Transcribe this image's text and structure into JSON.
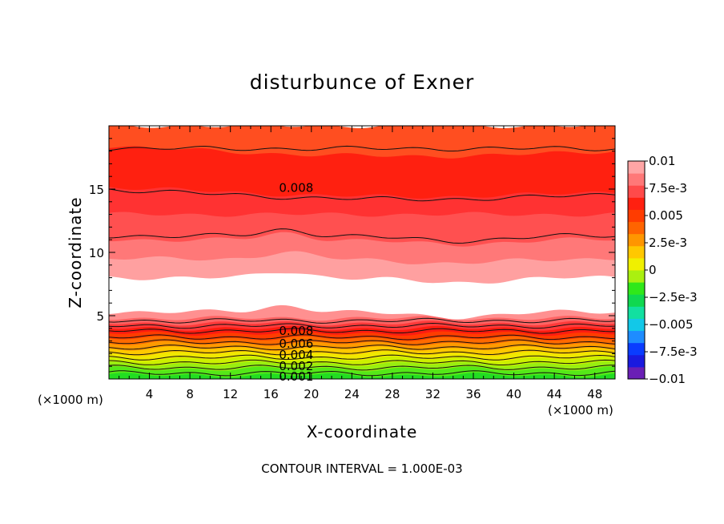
{
  "chart_data": {
    "type": "heatmap",
    "title": "disturbunce of Exner",
    "xlabel": "X-coordinate",
    "ylabel": "Z-coordinate",
    "x_unit_left": "(×1000 m)",
    "x_unit_right": "(×1000 m)",
    "footer": "CONTOUR INTERVAL = 1.000E-03",
    "xlim": [
      0,
      50
    ],
    "ylim": [
      0,
      20
    ],
    "x_ticks": [
      4,
      8,
      12,
      16,
      20,
      24,
      28,
      32,
      36,
      40,
      44,
      48
    ],
    "y_ticks": [
      5,
      10,
      15
    ],
    "colorbar": {
      "range": [
        -0.01,
        0.01
      ],
      "tick_labels": [
        "0.01",
        "7.5e-3",
        "0.005",
        "2.5e-3",
        "0",
        "−2.5e-3",
        "−0.005",
        "−7.5e-3",
        "−0.01"
      ],
      "tick_values": [
        0.01,
        0.0075,
        0.005,
        0.0025,
        0,
        -0.0025,
        -0.005,
        -0.0075,
        -0.01
      ],
      "colors_low_to_high": [
        "#6a1fb5",
        "#1a1adf",
        "#0a3cff",
        "#1e8cff",
        "#12c8e8",
        "#12e0a0",
        "#10d850",
        "#30e81a",
        "#aaf010",
        "#f0f000",
        "#ffc800",
        "#ff9600",
        "#ff6400",
        "#ff3c00",
        "#ff2010",
        "#ff4a4a",
        "#ff7878",
        "#ffa5a5"
      ]
    },
    "bands": [
      {
        "z": 0.3,
        "color": "#22dd22"
      },
      {
        "z": 0.8,
        "color": "#55e818"
      },
      {
        "z": 1.2,
        "color": "#99ee10"
      },
      {
        "z": 1.6,
        "color": "#ccf000"
      },
      {
        "z": 2.0,
        "color": "#f0e800"
      },
      {
        "z": 2.4,
        "color": "#ffc800"
      },
      {
        "z": 2.8,
        "color": "#ff9a00"
      },
      {
        "z": 3.2,
        "color": "#ff6a00"
      },
      {
        "z": 3.6,
        "color": "#ff3c00"
      },
      {
        "z": 4.0,
        "color": "#ff1c10"
      },
      {
        "z": 4.4,
        "color": "#ff3a3a"
      },
      {
        "z": 4.8,
        "color": "#ff6464"
      },
      {
        "z": 5.3,
        "color": "#ff9090"
      },
      {
        "z": 8.0,
        "color": "#ffffff"
      },
      {
        "z": 9.5,
        "color": "#ffa0a0"
      },
      {
        "z": 11.0,
        "color": "#ff7878"
      },
      {
        "z": 13.0,
        "color": "#ff5050"
      },
      {
        "z": 15.0,
        "color": "#ff3232"
      },
      {
        "z": 18.2,
        "color": "#ff2010"
      },
      {
        "z": 20.0,
        "color": "#ff4e20"
      }
    ],
    "contour_lines": [
      {
        "z": 0.45
      },
      {
        "z": 0.9
      },
      {
        "z": 1.3
      },
      {
        "z": 1.7
      },
      {
        "z": 2.1
      },
      {
        "z": 2.5
      },
      {
        "z": 2.9
      },
      {
        "z": 3.3
      },
      {
        "z": 3.8
      },
      {
        "z": 4.2
      },
      {
        "z": 4.6
      },
      {
        "z": 11.3,
        "wavy": true
      },
      {
        "z": 14.8,
        "tilt": true
      },
      {
        "z": 18.2
      }
    ],
    "contour_labels": [
      {
        "text": "0.008",
        "x": 18.5,
        "z": 15.1
      },
      {
        "text": "0.008",
        "x": 18.5,
        "z": 3.8
      },
      {
        "text": "0.006",
        "x": 18.5,
        "z": 2.8
      },
      {
        "text": "0.004",
        "x": 18.5,
        "z": 1.9
      },
      {
        "text": "0.002",
        "x": 18.5,
        "z": 1.0
      },
      {
        "text": "0.001",
        "x": 18.5,
        "z": 0.2
      }
    ]
  }
}
